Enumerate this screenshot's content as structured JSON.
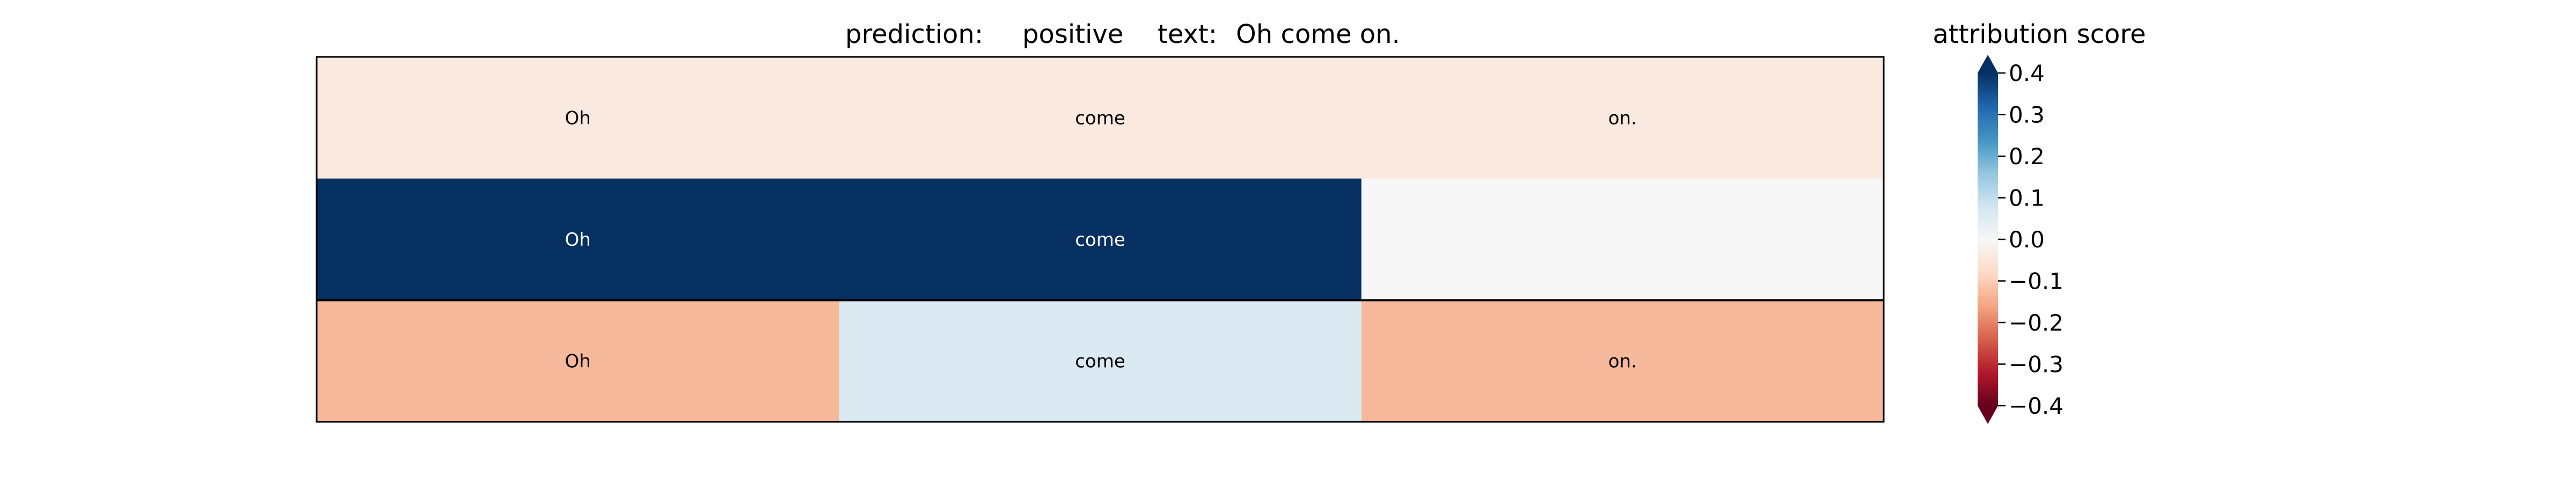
{
  "title": {
    "prediction_label": "prediction:",
    "prediction_value": "positive",
    "text_label": "text:",
    "text_value": "Oh come on."
  },
  "colorbar": {
    "title": "attribution score",
    "colormap": "RdBu",
    "range": [
      -0.4,
      0.4
    ],
    "extend": "both",
    "ticks": [
      {
        "value": 0.4,
        "label": "0.4"
      },
      {
        "value": 0.3,
        "label": "0.3"
      },
      {
        "value": 0.2,
        "label": "0.2"
      },
      {
        "value": 0.1,
        "label": "0.1"
      },
      {
        "value": 0.0,
        "label": "0.0"
      },
      {
        "value": -0.1,
        "label": "−0.1"
      },
      {
        "value": -0.2,
        "label": "−0.2"
      },
      {
        "value": -0.3,
        "label": "−0.3"
      },
      {
        "value": -0.4,
        "label": "−0.4"
      }
    ]
  },
  "chart_data": {
    "type": "heatmap",
    "tokens": [
      "Oh",
      "come",
      "on."
    ],
    "rows": [
      {
        "cells": [
          {
            "text": "Oh",
            "score": -0.04
          },
          {
            "text": "come",
            "score": -0.04
          },
          {
            "text": "on.",
            "score": -0.04
          }
        ]
      },
      {
        "cells": [
          {
            "text": "Oh",
            "score": 0.4
          },
          {
            "text": "come",
            "score": 0.4
          },
          {
            "text": "",
            "score": 0.0
          }
        ]
      },
      {
        "cells": [
          {
            "text": "Oh",
            "score": -0.13
          },
          {
            "text": "come",
            "score": 0.06
          },
          {
            "text": "on.",
            "score": -0.13
          }
        ]
      }
    ],
    "vmin": -0.4,
    "vmax": 0.4
  }
}
